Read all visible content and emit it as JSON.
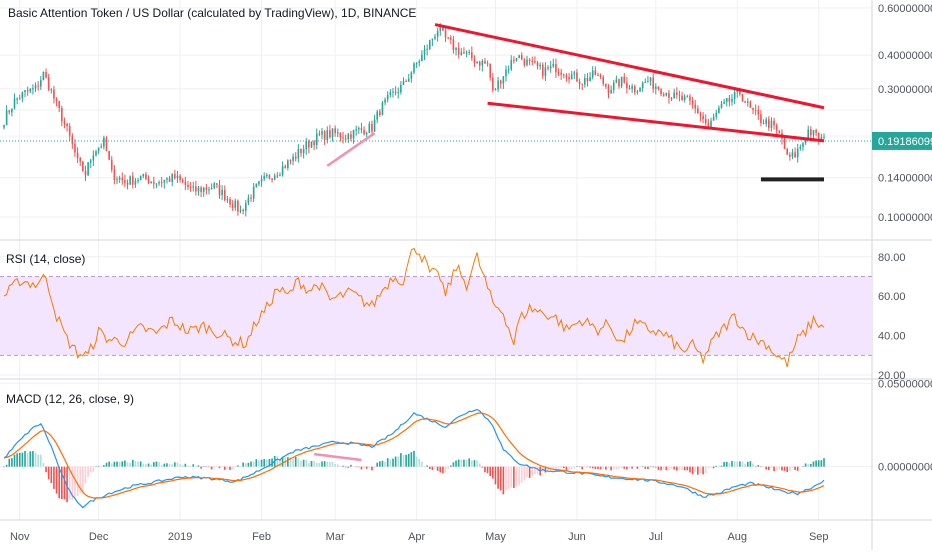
{
  "title": "Basic Attention Token / US Dollar (calculated by TradingView), 1D, BINANCE",
  "colors": {
    "up": "#26a69a",
    "down": "#ef5350",
    "trendline": "#f0142d",
    "pink_line": "#f48fb1",
    "support_bar": "#222222",
    "price_line": "#26a69a",
    "price_tag_bg": "#26a69a",
    "rsi_line": "#f57c00",
    "rsi_band": "#f3e5fd",
    "macd_line": "#2196f3",
    "signal_line": "#ff6d00",
    "grid": "#eef0f3",
    "axis_text": "#50535e"
  },
  "x_axis": {
    "ticks": [
      {
        "label": "Nov",
        "i": 6
      },
      {
        "label": "Dec",
        "i": 36
      },
      {
        "label": "2019",
        "i": 67
      },
      {
        "label": "Feb",
        "i": 98
      },
      {
        "label": "Mar",
        "i": 126
      },
      {
        "label": "Apr",
        "i": 157
      },
      {
        "label": "May",
        "i": 187
      },
      {
        "label": "Jun",
        "i": 218
      },
      {
        "label": "Jul",
        "i": 248
      },
      {
        "label": "Aug",
        "i": 279
      },
      {
        "label": "Sep",
        "i": 310
      }
    ]
  },
  "rsi": {
    "label": "RSI (14, close)",
    "ticks": [
      "80.00",
      "60.00",
      "40.00",
      "20.00"
    ],
    "tick_values": [
      80,
      60,
      40,
      20
    ],
    "band": [
      30,
      70
    ],
    "ylim": [
      18,
      88
    ]
  },
  "macd": {
    "label": "MACD (12, 26, close, 9)",
    "ticks": [
      "0.05000000",
      "0.00000000"
    ],
    "tick_values": [
      0.05,
      0.0
    ],
    "ylim": [
      -0.032,
      0.052
    ]
  },
  "chart_data": {
    "type": "candlestick",
    "title": "Basic Attention Token / US Dollar (calculated by TradingView), 1D, BINANCE",
    "scale": "log",
    "ylim": [
      0.085,
      0.62
    ],
    "price_ticks": [
      "0.60000000",
      "0.40000000",
      "0.30000000",
      "0.14000000",
      "0.10000000"
    ],
    "price_tick_values": [
      0.6,
      0.4,
      0.3,
      0.14,
      0.1
    ],
    "last_price": 0.19186099,
    "last_price_label": "0.19186099",
    "date_range": [
      "2018-10-15",
      "2019-08-29"
    ],
    "anchors": [
      [
        0,
        0.23
      ],
      [
        4,
        0.27
      ],
      [
        8,
        0.29
      ],
      [
        12,
        0.3
      ],
      [
        15,
        0.34
      ],
      [
        17,
        0.31
      ],
      [
        20,
        0.26
      ],
      [
        24,
        0.21
      ],
      [
        28,
        0.16
      ],
      [
        31,
        0.145
      ],
      [
        34,
        0.175
      ],
      [
        38,
        0.19
      ],
      [
        41,
        0.145
      ],
      [
        46,
        0.135
      ],
      [
        52,
        0.14
      ],
      [
        58,
        0.135
      ],
      [
        65,
        0.14
      ],
      [
        72,
        0.125
      ],
      [
        80,
        0.13
      ],
      [
        86,
        0.115
      ],
      [
        90,
        0.105
      ],
      [
        95,
        0.125
      ],
      [
        100,
        0.14
      ],
      [
        105,
        0.15
      ],
      [
        110,
        0.165
      ],
      [
        115,
        0.185
      ],
      [
        120,
        0.2
      ],
      [
        125,
        0.205
      ],
      [
        130,
        0.2
      ],
      [
        135,
        0.21
      ],
      [
        140,
        0.215
      ],
      [
        143,
        0.25
      ],
      [
        147,
        0.28
      ],
      [
        152,
        0.31
      ],
      [
        156,
        0.36
      ],
      [
        160,
        0.41
      ],
      [
        165,
        0.5
      ],
      [
        168,
        0.46
      ],
      [
        172,
        0.42
      ],
      [
        176,
        0.4
      ],
      [
        180,
        0.38
      ],
      [
        184,
        0.37
      ],
      [
        186,
        0.29
      ],
      [
        190,
        0.34
      ],
      [
        195,
        0.4
      ],
      [
        200,
        0.37
      ],
      [
        205,
        0.35
      ],
      [
        210,
        0.36
      ],
      [
        215,
        0.34
      ],
      [
        220,
        0.32
      ],
      [
        225,
        0.34
      ],
      [
        230,
        0.3
      ],
      [
        235,
        0.32
      ],
      [
        240,
        0.3
      ],
      [
        245,
        0.32
      ],
      [
        250,
        0.3
      ],
      [
        255,
        0.28
      ],
      [
        260,
        0.27
      ],
      [
        265,
        0.24
      ],
      [
        268,
        0.215
      ],
      [
        272,
        0.25
      ],
      [
        276,
        0.27
      ],
      [
        280,
        0.29
      ],
      [
        284,
        0.25
      ],
      [
        288,
        0.23
      ],
      [
        292,
        0.22
      ],
      [
        296,
        0.195
      ],
      [
        298,
        0.165
      ],
      [
        301,
        0.17
      ],
      [
        304,
        0.19
      ],
      [
        306,
        0.21
      ],
      [
        309,
        0.2
      ],
      [
        312,
        0.192
      ]
    ],
    "annotations": {
      "upper_trendline": [
        [
          0.0,
          0.52
        ],
        [
          1.0,
          0.255
        ]
      ],
      "lower_trendline": [
        [
          0.0,
          0.265
        ],
        [
          1.0,
          0.192
        ]
      ],
      "trendline_i": [
        [
          164,
          312
        ],
        [
          184,
          312
        ]
      ],
      "pink_line": {
        "i": [
          123,
          141
        ],
        "p": [
          0.155,
          0.205
        ]
      },
      "support_bar": {
        "i": [
          288,
          312
        ],
        "p": 0.138
      }
    },
    "rsi_anchors": [
      [
        0,
        60
      ],
      [
        6,
        68
      ],
      [
        12,
        66
      ],
      [
        16,
        70
      ],
      [
        20,
        50
      ],
      [
        24,
        38
      ],
      [
        28,
        31
      ],
      [
        32,
        30
      ],
      [
        36,
        42
      ],
      [
        40,
        38
      ],
      [
        46,
        37
      ],
      [
        52,
        44
      ],
      [
        58,
        41
      ],
      [
        64,
        48
      ],
      [
        70,
        42
      ],
      [
        76,
        45
      ],
      [
        82,
        41
      ],
      [
        88,
        37
      ],
      [
        92,
        36
      ],
      [
        96,
        47
      ],
      [
        100,
        54
      ],
      [
        104,
        64
      ],
      [
        108,
        60
      ],
      [
        112,
        68
      ],
      [
        116,
        63
      ],
      [
        120,
        66
      ],
      [
        124,
        58
      ],
      [
        128,
        60
      ],
      [
        132,
        62
      ],
      [
        136,
        58
      ],
      [
        140,
        55
      ],
      [
        144,
        63
      ],
      [
        148,
        70
      ],
      [
        152,
        68
      ],
      [
        156,
        86
      ],
      [
        160,
        78
      ],
      [
        162,
        72
      ],
      [
        166,
        70
      ],
      [
        168,
        60
      ],
      [
        172,
        75
      ],
      [
        176,
        66
      ],
      [
        180,
        80
      ],
      [
        184,
        64
      ],
      [
        186,
        56
      ],
      [
        190,
        52
      ],
      [
        194,
        36
      ],
      [
        196,
        48
      ],
      [
        200,
        54
      ],
      [
        204,
        52
      ],
      [
        210,
        49
      ],
      [
        214,
        43
      ],
      [
        220,
        48
      ],
      [
        226,
        43
      ],
      [
        230,
        46
      ],
      [
        235,
        36
      ],
      [
        240,
        46
      ],
      [
        246,
        43
      ],
      [
        252,
        40
      ],
      [
        258,
        32
      ],
      [
        262,
        35
      ],
      [
        266,
        28
      ],
      [
        270,
        38
      ],
      [
        274,
        44
      ],
      [
        278,
        50
      ],
      [
        282,
        42
      ],
      [
        286,
        38
      ],
      [
        290,
        36
      ],
      [
        294,
        30
      ],
      [
        298,
        26
      ],
      [
        302,
        38
      ],
      [
        305,
        42
      ],
      [
        308,
        48
      ],
      [
        312,
        44
      ]
    ],
    "macd_anchors": [
      [
        0,
        0.005
      ],
      [
        5,
        0.014
      ],
      [
        10,
        0.022
      ],
      [
        14,
        0.026
      ],
      [
        18,
        0.012
      ],
      [
        22,
        -0.005
      ],
      [
        26,
        -0.018
      ],
      [
        30,
        -0.024
      ],
      [
        34,
        -0.02
      ],
      [
        40,
        -0.016
      ],
      [
        48,
        -0.012
      ],
      [
        58,
        -0.009
      ],
      [
        68,
        -0.006
      ],
      [
        78,
        -0.007
      ],
      [
        88,
        -0.009
      ],
      [
        95,
        -0.004
      ],
      [
        102,
        0.002
      ],
      [
        110,
        0.009
      ],
      [
        118,
        0.012
      ],
      [
        126,
        0.015
      ],
      [
        132,
        0.014
      ],
      [
        140,
        0.012
      ],
      [
        148,
        0.02
      ],
      [
        156,
        0.032
      ],
      [
        162,
        0.028
      ],
      [
        168,
        0.024
      ],
      [
        174,
        0.031
      ],
      [
        180,
        0.035
      ],
      [
        186,
        0.025
      ],
      [
        190,
        0.01
      ],
      [
        196,
        0.002
      ],
      [
        204,
        -0.002
      ],
      [
        212,
        -0.003
      ],
      [
        220,
        -0.004
      ],
      [
        228,
        -0.006
      ],
      [
        236,
        -0.007
      ],
      [
        244,
        -0.008
      ],
      [
        252,
        -0.01
      ],
      [
        258,
        -0.012
      ],
      [
        266,
        -0.018
      ],
      [
        272,
        -0.016
      ],
      [
        278,
        -0.012
      ],
      [
        284,
        -0.01
      ],
      [
        290,
        -0.012
      ],
      [
        296,
        -0.015
      ],
      [
        302,
        -0.016
      ],
      [
        308,
        -0.012
      ],
      [
        312,
        -0.008
      ]
    ]
  }
}
